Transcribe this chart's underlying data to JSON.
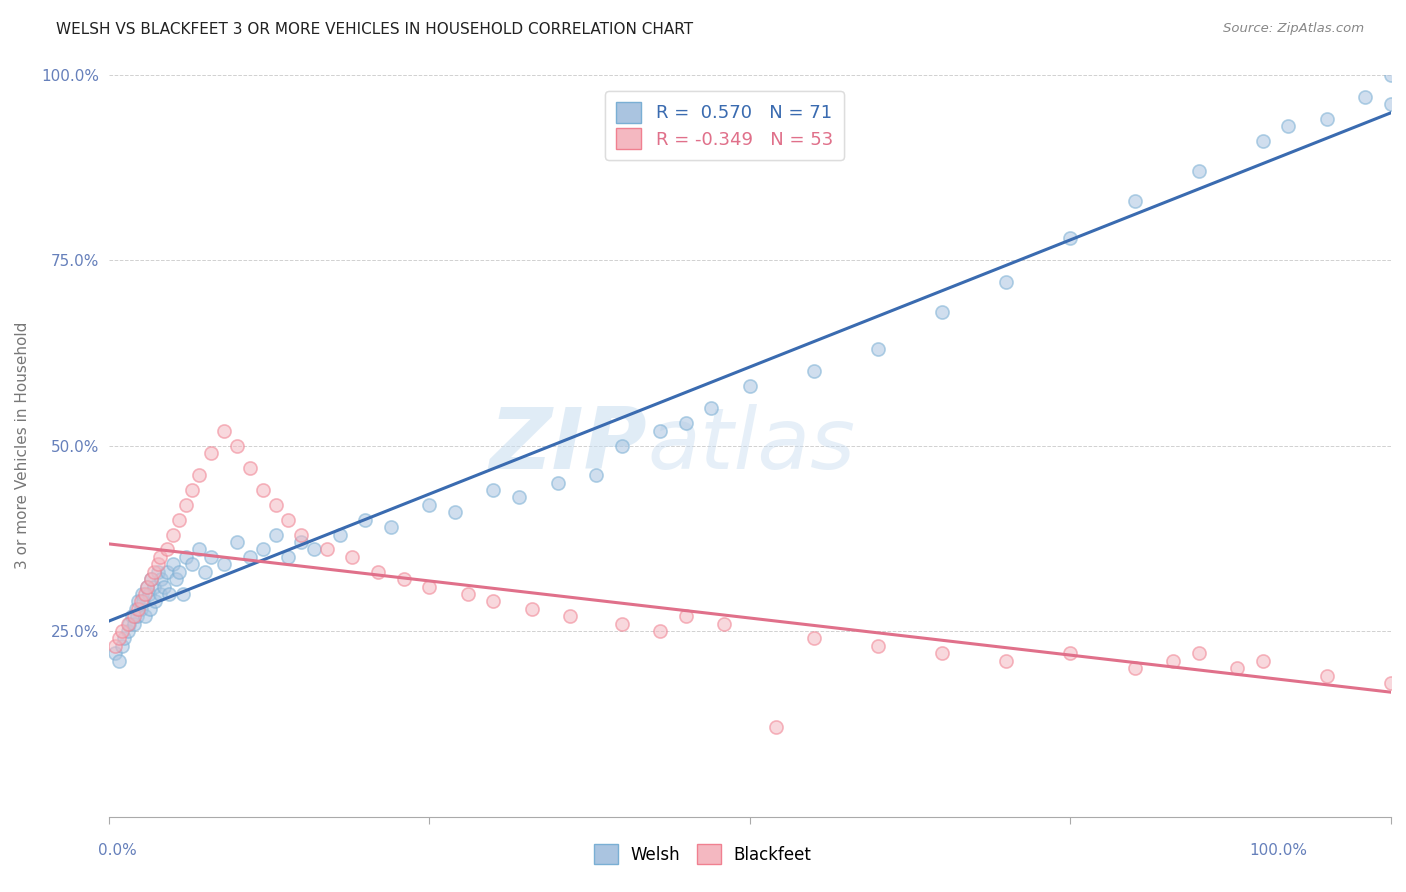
{
  "title": "WELSH VS BLACKFEET 3 OR MORE VEHICLES IN HOUSEHOLD CORRELATION CHART",
  "source": "Source: ZipAtlas.com",
  "ylabel": "3 or more Vehicles in Household",
  "welsh_R": 0.57,
  "welsh_N": 71,
  "blackfeet_R": -0.349,
  "blackfeet_N": 53,
  "welsh_color": "#aac4e0",
  "blackfeet_color": "#f4b8c1",
  "welsh_edge_color": "#7aafd4",
  "blackfeet_edge_color": "#f08090",
  "welsh_line_color": "#3a6bb0",
  "blackfeet_line_color": "#e0708a",
  "background_color": "#ffffff",
  "watermark_zip": "ZIP",
  "watermark_atlas": "atlas",
  "grid_color": "#cccccc",
  "tick_color": "#6680bb",
  "ylabel_color": "#777777",
  "marker_size": 90,
  "marker_alpha": 0.55,
  "line_width": 2.2,
  "welsh_x": [
    0.5,
    0.8,
    1.0,
    1.2,
    1.5,
    1.6,
    1.8,
    2.0,
    2.1,
    2.2,
    2.3,
    2.5,
    2.6,
    2.7,
    2.8,
    3.0,
    3.1,
    3.2,
    3.3,
    3.5,
    3.6,
    3.8,
    4.0,
    4.1,
    4.3,
    4.5,
    4.7,
    5.0,
    5.2,
    5.5,
    5.8,
    6.0,
    6.5,
    7.0,
    7.5,
    8.0,
    9.0,
    10.0,
    11.0,
    12.0,
    13.0,
    14.0,
    15.0,
    16.0,
    18.0,
    20.0,
    22.0,
    25.0,
    27.0,
    30.0,
    32.0,
    35.0,
    38.0,
    40.0,
    43.0,
    45.0,
    47.0,
    50.0,
    55.0,
    60.0,
    65.0,
    70.0,
    75.0,
    80.0,
    85.0,
    90.0,
    92.0,
    95.0,
    98.0,
    100.0,
    100.0
  ],
  "welsh_y": [
    22.0,
    21.0,
    23.0,
    24.0,
    25.0,
    26.0,
    27.0,
    26.0,
    28.0,
    27.0,
    29.0,
    28.0,
    30.0,
    29.0,
    27.0,
    31.0,
    30.0,
    28.0,
    32.0,
    31.0,
    29.0,
    33.0,
    30.0,
    32.0,
    31.0,
    33.0,
    30.0,
    34.0,
    32.0,
    33.0,
    30.0,
    35.0,
    34.0,
    36.0,
    33.0,
    35.0,
    34.0,
    37.0,
    35.0,
    36.0,
    38.0,
    35.0,
    37.0,
    36.0,
    38.0,
    40.0,
    39.0,
    42.0,
    41.0,
    44.0,
    43.0,
    45.0,
    46.0,
    50.0,
    52.0,
    53.0,
    55.0,
    58.0,
    60.0,
    63.0,
    68.0,
    72.0,
    78.0,
    83.0,
    87.0,
    91.0,
    93.0,
    94.0,
    97.0,
    100.0,
    96.0
  ],
  "blackfeet_x": [
    0.5,
    0.8,
    1.0,
    1.5,
    2.0,
    2.3,
    2.5,
    2.8,
    3.0,
    3.3,
    3.5,
    3.8,
    4.0,
    4.5,
    5.0,
    5.5,
    6.0,
    6.5,
    7.0,
    8.0,
    9.0,
    10.0,
    11.0,
    12.0,
    13.0,
    14.0,
    15.0,
    17.0,
    19.0,
    21.0,
    23.0,
    25.0,
    28.0,
    30.0,
    33.0,
    36.0,
    40.0,
    43.0,
    45.0,
    48.0,
    52.0,
    55.0,
    60.0,
    65.0,
    70.0,
    75.0,
    80.0,
    83.0,
    85.0,
    88.0,
    90.0,
    95.0,
    100.0
  ],
  "blackfeet_y": [
    23.0,
    24.0,
    25.0,
    26.0,
    27.0,
    28.0,
    29.0,
    30.0,
    31.0,
    32.0,
    33.0,
    34.0,
    35.0,
    36.0,
    38.0,
    40.0,
    42.0,
    44.0,
    46.0,
    49.0,
    52.0,
    50.0,
    47.0,
    44.0,
    42.0,
    40.0,
    38.0,
    36.0,
    35.0,
    33.0,
    32.0,
    31.0,
    30.0,
    29.0,
    28.0,
    27.0,
    26.0,
    25.0,
    27.0,
    26.0,
    12.0,
    24.0,
    23.0,
    22.0,
    21.0,
    22.0,
    20.0,
    21.0,
    22.0,
    20.0,
    21.0,
    19.0,
    18.0
  ],
  "xlim": [
    0,
    100
  ],
  "ylim": [
    0,
    100
  ],
  "ytick_positions": [
    0,
    25,
    50,
    75,
    100
  ],
  "ytick_labels": [
    "",
    "25.0%",
    "50.0%",
    "75.0%",
    "100.0%"
  ],
  "legend_labels": [
    "Welsh",
    "Blackfeet"
  ]
}
